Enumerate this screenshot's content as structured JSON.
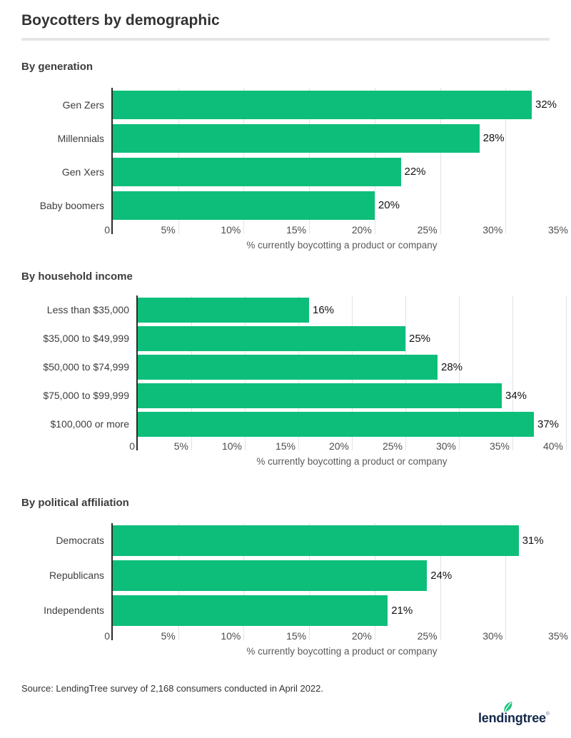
{
  "header": {
    "title": "Boycotters by demographic"
  },
  "colors": {
    "bar_green": "#0dbe7a",
    "leaf_green": "#1fc47c",
    "logo_navy": "#13294b",
    "gridline": "#e3e3e3",
    "axis_line": "#2b2b2b",
    "divider": "#e6e6e6"
  },
  "chart_data": [
    {
      "type": "bar",
      "orientation": "horizontal",
      "section_title": "By generation",
      "categories": [
        "Gen Zers",
        "Millennials",
        "Gen Xers",
        "Baby boomers"
      ],
      "values": [
        32,
        28,
        22,
        20
      ],
      "data_labels": [
        "32%",
        "28%",
        "22%",
        "20%"
      ],
      "xlabel": "% currently boycotting a product or company",
      "xlim": [
        0,
        35
      ],
      "xtick_values": [
        0,
        5,
        10,
        15,
        20,
        25,
        30,
        35
      ],
      "xtick_labels": [
        "0",
        "5%",
        "10%",
        "15%",
        "20%",
        "25%",
        "30%",
        "35%"
      ],
      "grid": true,
      "legend": "none"
    },
    {
      "type": "bar",
      "orientation": "horizontal",
      "section_title": "By household income",
      "categories": [
        "Less than $35,000",
        "$35,000 to $49,999",
        "$50,000 to $74,999",
        "$75,000 to $99,999",
        "$100,000 or more"
      ],
      "values": [
        16,
        25,
        28,
        34,
        37
      ],
      "data_labels": [
        "16%",
        "25%",
        "28%",
        "34%",
        "37%"
      ],
      "xlabel": "% currently boycotting a product or company",
      "xlim": [
        0,
        40
      ],
      "xtick_values": [
        0,
        5,
        10,
        15,
        20,
        25,
        30,
        35,
        40
      ],
      "xtick_labels": [
        "0",
        "5%",
        "10%",
        "15%",
        "20%",
        "25%",
        "30%",
        "35%",
        "40%"
      ],
      "grid": true,
      "legend": "none"
    },
    {
      "type": "bar",
      "orientation": "horizontal",
      "section_title": "By political affiliation",
      "categories": [
        "Democrats",
        "Republicans",
        "Independents"
      ],
      "values": [
        31,
        24,
        21
      ],
      "data_labels": [
        "31%",
        "24%",
        "21%"
      ],
      "xlabel": "% currently boycotting a product or company",
      "xlim": [
        0,
        35
      ],
      "xtick_values": [
        0,
        5,
        10,
        15,
        20,
        25,
        30,
        35
      ],
      "xtick_labels": [
        "0",
        "5%",
        "10%",
        "15%",
        "20%",
        "25%",
        "30%",
        "35%"
      ],
      "grid": true,
      "legend": "none"
    }
  ],
  "footer": {
    "source": "Source: LendingTree survey of 2,168 consumers conducted in April 2022.",
    "logo_text": "lendingtree",
    "logo_registered": "®"
  }
}
